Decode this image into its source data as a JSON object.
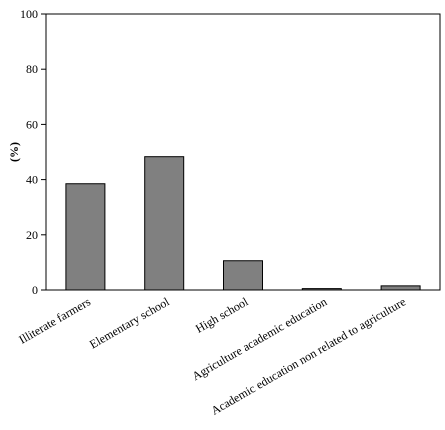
{
  "chart_data": {
    "type": "bar",
    "title": "",
    "xlabel": "",
    "ylabel": "(%)",
    "categories": [
      "Illiterate farmers",
      "Elementary school",
      "High school",
      "Agriculture academic education",
      "Academic education non related to agriculture"
    ],
    "values": [
      38.5,
      48.3,
      10.6,
      0.5,
      1.5
    ],
    "ylim": [
      0,
      100
    ],
    "yticks": [
      "0",
      "20",
      "40",
      "60",
      "80",
      "100"
    ],
    "grid": false,
    "legend": "none",
    "bar_color": "#808080",
    "edge_color": "#000000"
  }
}
